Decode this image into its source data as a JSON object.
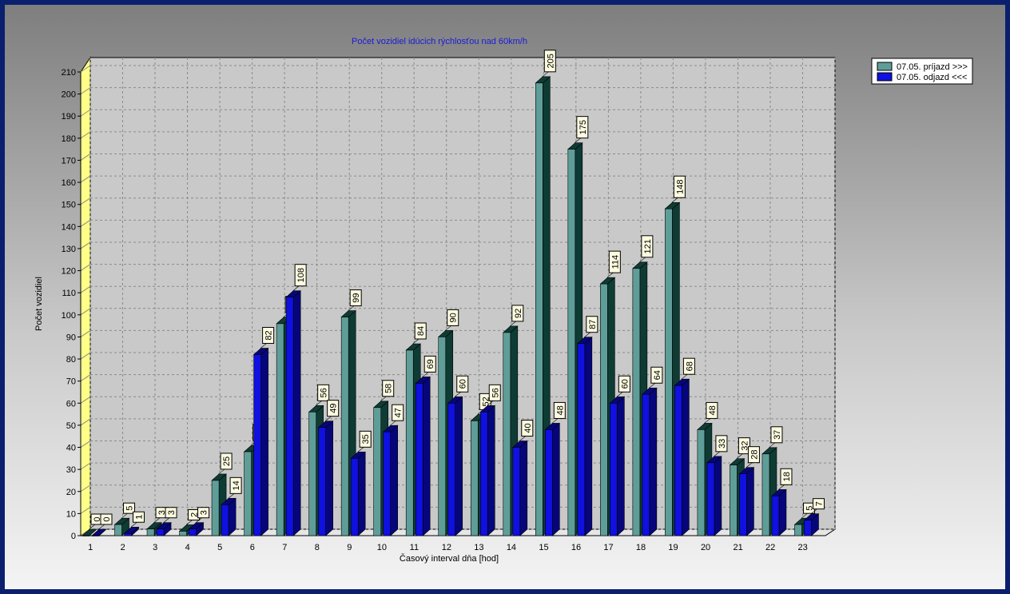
{
  "chart_data": {
    "type": "bar",
    "title": "Počet vozidiel idúcich rýchlosťou nad 60km/h",
    "xlabel": "Časový interval dňa [hod]",
    "ylabel": "Počet vozidiel",
    "ylim": [
      0,
      210
    ],
    "yticks": [
      0,
      10,
      20,
      30,
      40,
      50,
      60,
      70,
      80,
      90,
      100,
      110,
      120,
      130,
      140,
      150,
      160,
      170,
      180,
      190,
      200,
      210
    ],
    "grid": true,
    "legend_position": "top-right",
    "categories": [
      "1",
      "2",
      "3",
      "4",
      "5",
      "6",
      "7",
      "8",
      "9",
      "10",
      "11",
      "12",
      "13",
      "14",
      "15",
      "16",
      "17",
      "18",
      "19",
      "20",
      "21",
      "22",
      "23"
    ],
    "series": [
      {
        "name": "07.05.  príjazd >>>",
        "color": "#5f9e98",
        "dark": "#0e3b34",
        "values": [
          0,
          5,
          3,
          2,
          25,
          38,
          96,
          56,
          99,
          58,
          84,
          90,
          52,
          92,
          205,
          175,
          114,
          121,
          148,
          48,
          32,
          37,
          5
        ]
      },
      {
        "name": "07.05.  odjazd <<<",
        "color": "#1010e0",
        "dark": "#06067a",
        "values": [
          0,
          1,
          3,
          3,
          14,
          82,
          108,
          49,
          35,
          47,
          69,
          60,
          56,
          40,
          48,
          87,
          60,
          64,
          68,
          33,
          28,
          18,
          7
        ]
      }
    ]
  }
}
